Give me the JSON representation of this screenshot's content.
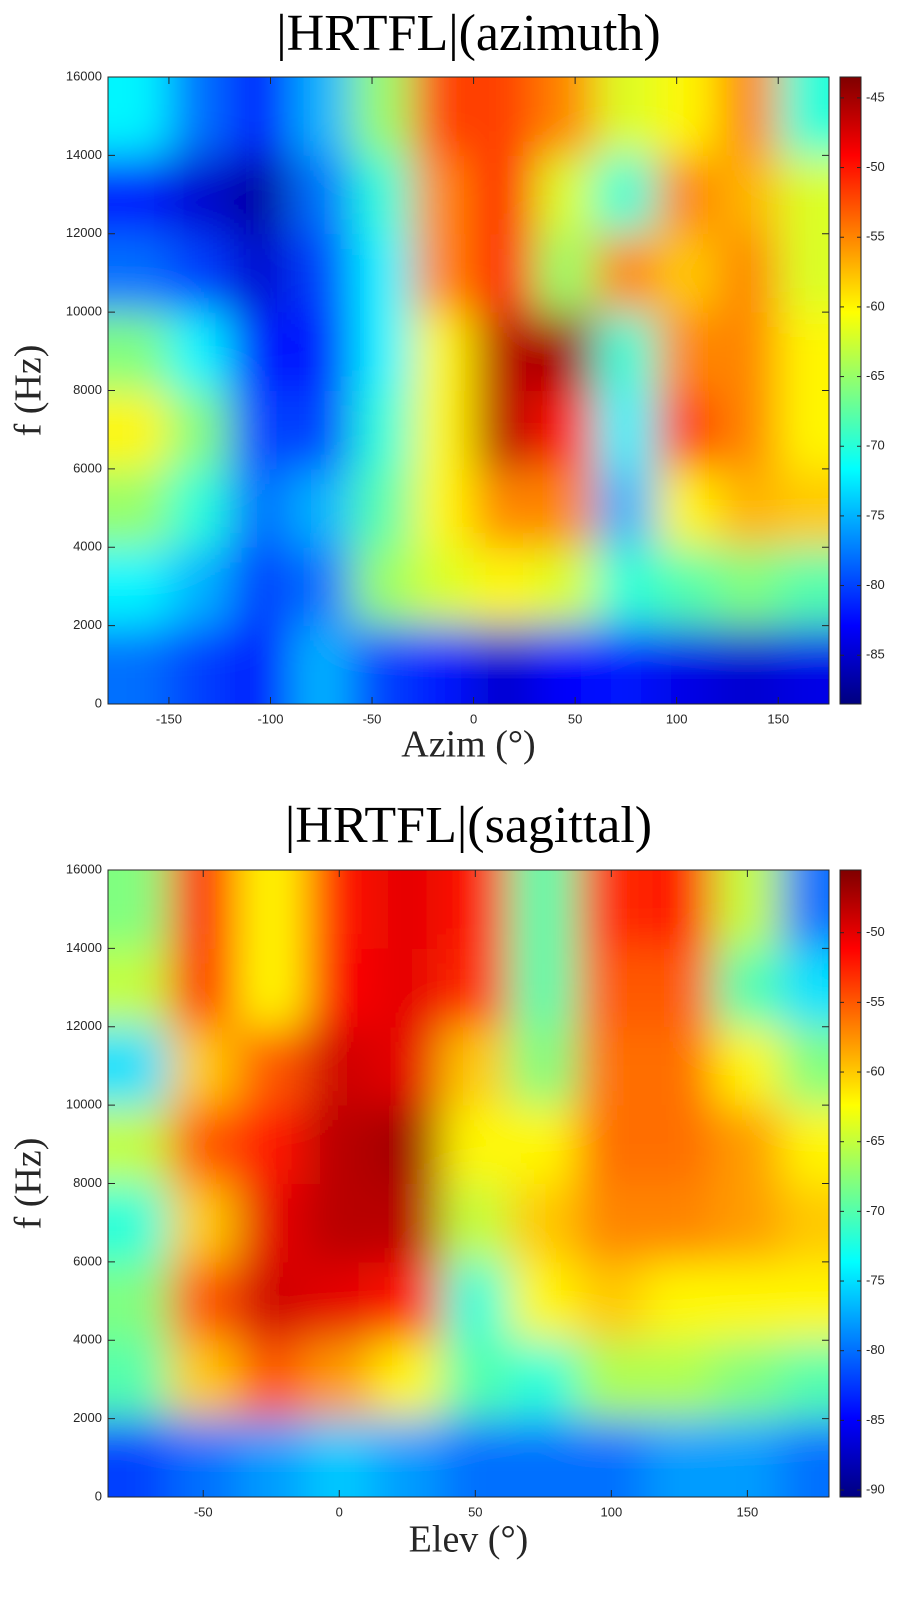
{
  "chart_data": [
    {
      "type": "heatmap",
      "title": "|HRTFL|(azimuth)",
      "xlabel": "Azim (°)",
      "ylabel": "f (Hz)",
      "colormap": "jet",
      "x": [
        -165,
        -135,
        -105,
        -75,
        -45,
        -15,
        15,
        45,
        75,
        105,
        135,
        165
      ],
      "y": [
        1000,
        3000,
        5000,
        7000,
        9000,
        11000,
        13000,
        15000
      ],
      "z": [
        [
          -78,
          -80,
          -82,
          -75,
          -80,
          -82,
          -85,
          -83,
          -82,
          -84,
          -85,
          -84
        ],
        [
          -72,
          -75,
          -80,
          -78,
          -65,
          -62,
          -60,
          -62,
          -70,
          -68,
          -66,
          -68
        ],
        [
          -65,
          -70,
          -78,
          -75,
          -68,
          -60,
          -55,
          -55,
          -75,
          -60,
          -57,
          -58
        ],
        [
          -60,
          -66,
          -80,
          -80,
          -70,
          -60,
          -46,
          -50,
          -72,
          -52,
          -55,
          -60
        ],
        [
          -66,
          -72,
          -82,
          -82,
          -72,
          -60,
          -46,
          -45,
          -70,
          -55,
          -55,
          -60
        ],
        [
          -78,
          -80,
          -85,
          -80,
          -72,
          -55,
          -50,
          -65,
          -55,
          -58,
          -55,
          -62
        ],
        [
          -82,
          -85,
          -87,
          -78,
          -70,
          -55,
          -50,
          -62,
          -70,
          -55,
          -57,
          -62
        ],
        [
          -72,
          -78,
          -82,
          -75,
          -65,
          -52,
          -52,
          -55,
          -62,
          -60,
          -55,
          -70
        ]
      ],
      "xlim": [
        -180,
        175
      ],
      "xticks": [
        -150,
        -100,
        -50,
        0,
        50,
        100,
        150
      ],
      "ylim": [
        0,
        16000
      ],
      "yticks": [
        0,
        2000,
        4000,
        6000,
        8000,
        10000,
        12000,
        14000,
        16000
      ],
      "clim": [
        -88.5,
        -43.5
      ],
      "cticks": [
        -85,
        -80,
        -75,
        -70,
        -65,
        -60,
        -55,
        -50,
        -45
      ]
    },
    {
      "type": "heatmap",
      "title": "|HRTFL|(sagittal)",
      "xlabel": "Elev (°)",
      "ylabel": "f (Hz)",
      "colormap": "jet",
      "x": [
        -75,
        -50,
        -25,
        0,
        25,
        50,
        75,
        100,
        125,
        150,
        175
      ],
      "y": [
        1000,
        3000,
        5000,
        7000,
        9000,
        11000,
        13000,
        15000
      ],
      "z": [
        [
          -82,
          -80,
          -78,
          -76,
          -78,
          -80,
          -80,
          -80,
          -78,
          -78,
          -80
        ],
        [
          -70,
          -60,
          -55,
          -58,
          -62,
          -70,
          -72,
          -66,
          -66,
          -68,
          -70
        ],
        [
          -68,
          -55,
          -49,
          -50,
          -52,
          -72,
          -62,
          -60,
          -62,
          -62,
          -62
        ],
        [
          -72,
          -60,
          -50,
          -48,
          -48,
          -65,
          -60,
          -57,
          -57,
          -58,
          -60
        ],
        [
          -65,
          -55,
          -52,
          -48,
          -47,
          -62,
          -62,
          -56,
          -56,
          -58,
          -62
        ],
        [
          -75,
          -60,
          -55,
          -49,
          -50,
          -60,
          -68,
          -56,
          -56,
          -62,
          -68
        ],
        [
          -65,
          -53,
          -62,
          -51,
          -50,
          -53,
          -70,
          -55,
          -55,
          -70,
          -75
        ],
        [
          -68,
          -52,
          -62,
          -52,
          -50,
          -52,
          -70,
          -53,
          -52,
          -65,
          -80
        ]
      ],
      "xlim": [
        -85,
        180
      ],
      "xticks": [
        -50,
        0,
        50,
        100,
        150
      ],
      "ylim": [
        0,
        16000
      ],
      "yticks": [
        0,
        2000,
        4000,
        6000,
        8000,
        10000,
        12000,
        14000,
        16000
      ],
      "clim": [
        -90.5,
        -45.5
      ],
      "cticks": [
        -90,
        -85,
        -80,
        -75,
        -70,
        -65,
        -60,
        -55,
        -50
      ]
    }
  ]
}
